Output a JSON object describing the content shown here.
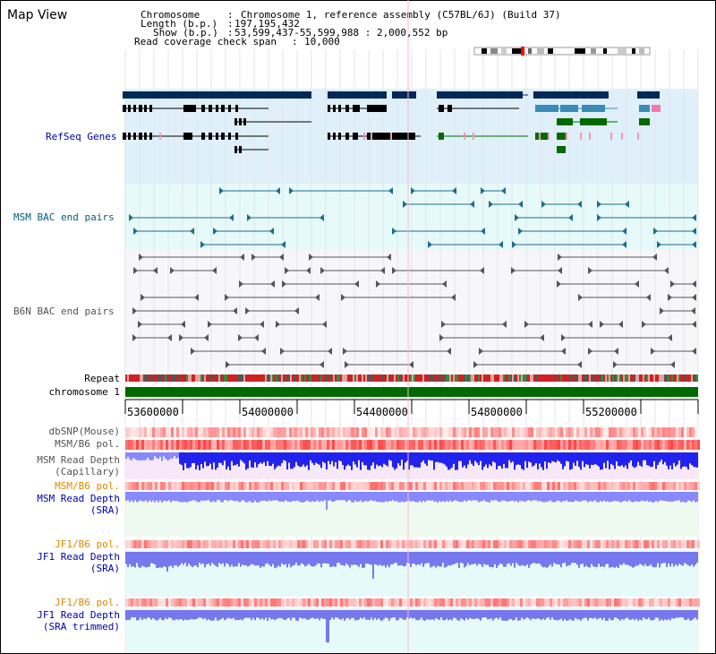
{
  "page": {
    "title": "Map View"
  },
  "header": {
    "chromosome_label": "Chromosome",
    "chromosome_value": "Chromosome 1, reference assembly (C57BL/6J) (Build 37)",
    "length_label": "Length (b.p.)",
    "length_value": "197,195,432",
    "show_label": "Show (b.p.)",
    "show_value": "53,599,437-55,599,988 : 2,000,552 bp",
    "coverage_label": "Read coverage check span",
    "coverage_value": "10,000"
  },
  "tracks": {
    "refseq": "RefSeq Genes",
    "msm_bac": "MSM BAC end pairs",
    "b6n_bac": "B6N BAC end pairs",
    "repeat": "Repeat",
    "chromosome": "chromosome 1",
    "dbsnp": "dbSNP(Mouse)",
    "msm_b6_pol": "MSM/B6 pol.",
    "msm_depth_cap_1": "MSM Read Depth",
    "msm_depth_cap_2": "(Capillary)",
    "msm_b6_pol_2": "MSM/B6 pol.",
    "msm_depth_sra_1": "MSM Read Depth",
    "msm_depth_sra_2": "(SRA)",
    "jf1_b6_pol": "JF1/B6 pol.",
    "jf1_depth_sra_1": "JF1 Read Depth",
    "jf1_depth_sra_2": "(SRA)",
    "jf1_b6_pol_2": "JF1/B6 pol.",
    "jf1_depth_trim_1": "JF1 Read Depth",
    "jf1_depth_trim_2": "(SRA trimmed)"
  },
  "axis": {
    "ticks": [
      "53600000",
      "54000000",
      "54400000",
      "54800000",
      "55200000"
    ]
  },
  "colors": {
    "refseq_bg": "#dff0fa",
    "msm_bac_bg": "#e6fafa",
    "b6n_bac_bg": "#f7f7fa",
    "chromosome_bar": "#006a00",
    "depth_blue": "#2222ee",
    "depth_light": "#8888ff",
    "pol_red": "#ee3333",
    "label_blue": "#0000aa",
    "label_orange": "#dd8800"
  }
}
